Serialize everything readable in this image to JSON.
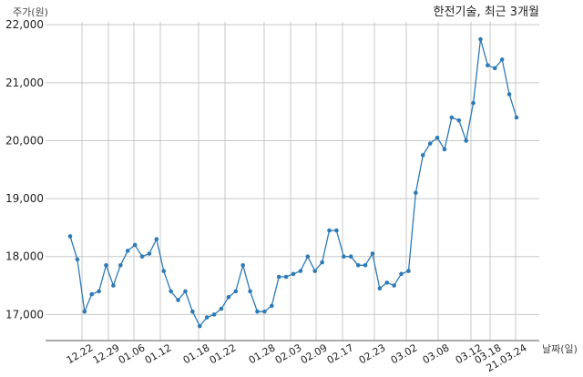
{
  "chart_data": {
    "type": "line",
    "title": "한전기술, 최근 3개월",
    "xlabel": "날짜(일)",
    "ylabel": "주가(원)",
    "ylim": [
      16550,
      22050
    ],
    "yticks": [
      17000,
      18000,
      19000,
      20000,
      21000,
      22000
    ],
    "ytick_labels": [
      "17,000",
      "18,000",
      "19,000",
      "20,000",
      "21,000",
      "22,000"
    ],
    "x_tick_labels": [
      "12.22",
      "12.29",
      "01.06",
      "01.12",
      "01.18",
      "01.22",
      "01.28",
      "02.03",
      "02.09",
      "02.17",
      "02.23",
      "03.02",
      "03.08",
      "03.12",
      "03.18",
      "21.03.24"
    ],
    "grid": true,
    "series": [
      {
        "color": "#2f7ab5",
        "values": [
          18350,
          17950,
          17050,
          17350,
          17400,
          17850,
          17500,
          17850,
          18100,
          18200,
          18000,
          18050,
          18300,
          17750,
          17400,
          17250,
          17400,
          17050,
          16800,
          16950,
          17000,
          17100,
          17300,
          17400,
          17850,
          17400,
          17050,
          17050,
          17150,
          17650,
          17650,
          17700,
          17750,
          18000,
          17750,
          17900,
          18450,
          18450,
          18000,
          18000,
          17850,
          17850,
          18050,
          17450,
          17550,
          17500,
          17700,
          17750,
          19100,
          19750,
          19950,
          20050,
          19850,
          20400,
          20350,
          20000,
          20650,
          21750,
          21300,
          21250,
          21400,
          20800,
          20400
        ]
      }
    ]
  }
}
